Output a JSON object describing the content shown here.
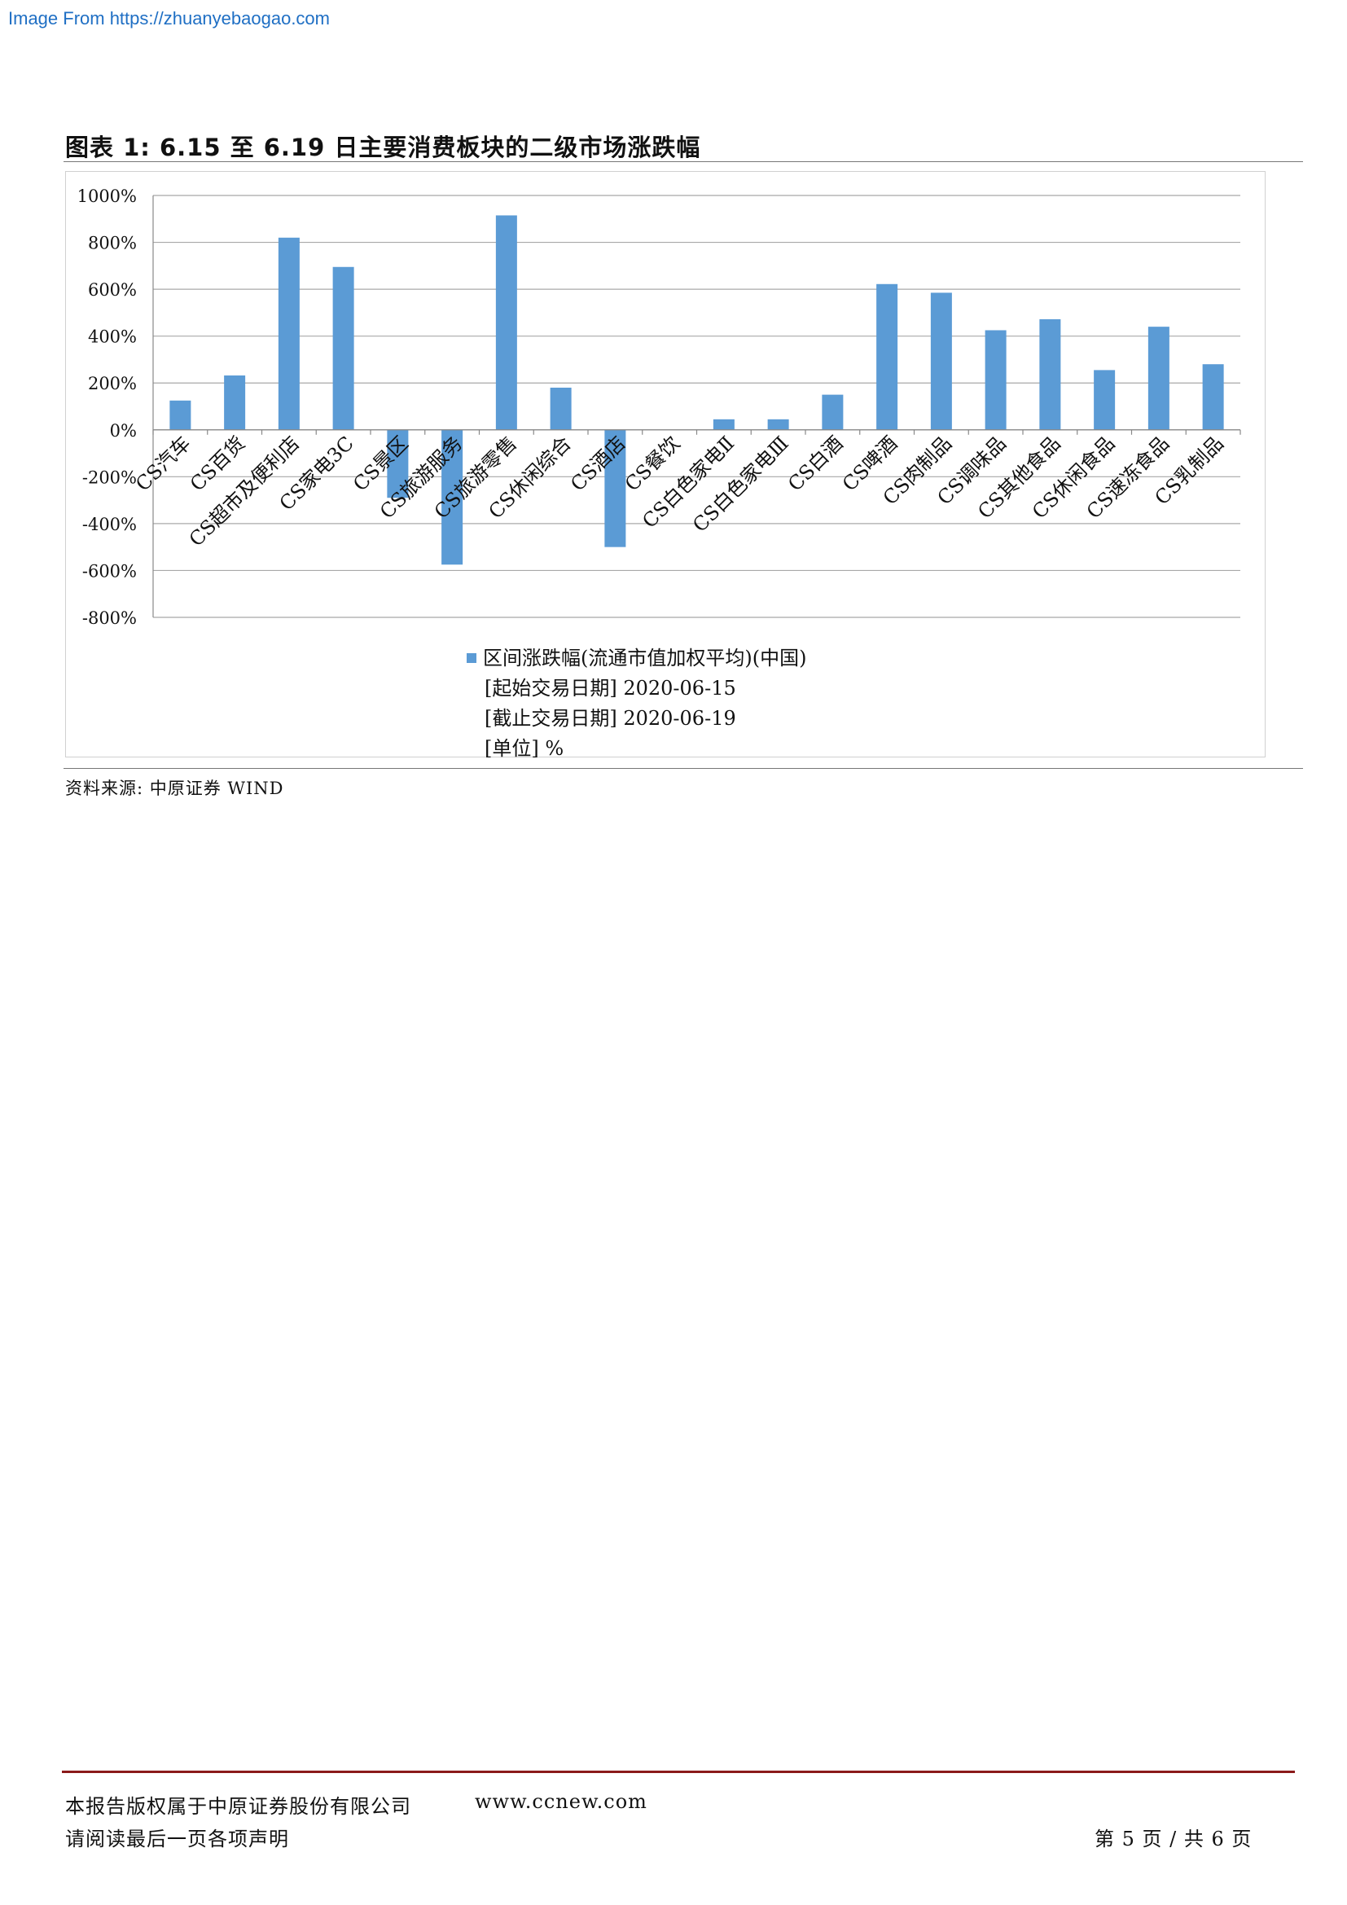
{
  "watermark": "Image From https://zhuanyebaogao.com",
  "figure": {
    "title": "图表 1:   6.15 至 6.19 日主要消费板块的二级市场涨跌幅"
  },
  "chart_data": {
    "type": "bar",
    "ylim": [
      -800,
      1000
    ],
    "ytick_values": [
      -800,
      -600,
      -400,
      -200,
      0,
      200,
      400,
      600,
      800,
      1000
    ],
    "ytick_labels": [
      "-800%",
      "-600%",
      "-400%",
      "-200%",
      "0%",
      "200%",
      "400%",
      "600%",
      "800%",
      "1000%"
    ],
    "grid": true,
    "categories": [
      "CS汽车",
      "CS百货",
      "CS超市及便利店",
      "CS家电3C",
      "CS景区",
      "CS旅游服务",
      "CS旅游零售",
      "CS休闲综合",
      "CS酒店",
      "CS餐饮",
      "CS白色家电Ⅱ",
      "CS白色家电Ⅲ",
      "CS白酒",
      "CS啤酒",
      "CS肉制品",
      "CS调味品",
      "CS其他食品",
      "CS休闲食品",
      "CS速冻食品",
      "CS乳制品"
    ],
    "series": [
      {
        "name": "区间涨跌幅(流通市值加权平均)(中国)",
        "color": "#5b9bd5",
        "values": [
          125,
          232,
          820,
          695,
          -290,
          -575,
          915,
          180,
          -500,
          0,
          45,
          45,
          150,
          622,
          585,
          425,
          472,
          255,
          440,
          280
        ]
      }
    ],
    "legend_position": "bottom",
    "legend_lines": [
      "[起始交易日期] 2020-06-15",
      "[截止交易日期] 2020-06-19",
      "[单位] %"
    ]
  },
  "source": "资料来源:  中原证券 WIND",
  "footer": {
    "copyright": "本报告版权属于中原证券股份有限公司",
    "website": "www.ccnew.com",
    "disclaimer": "请阅读最后一页各项声明",
    "page": "第 5 页 / 共 6 页"
  }
}
